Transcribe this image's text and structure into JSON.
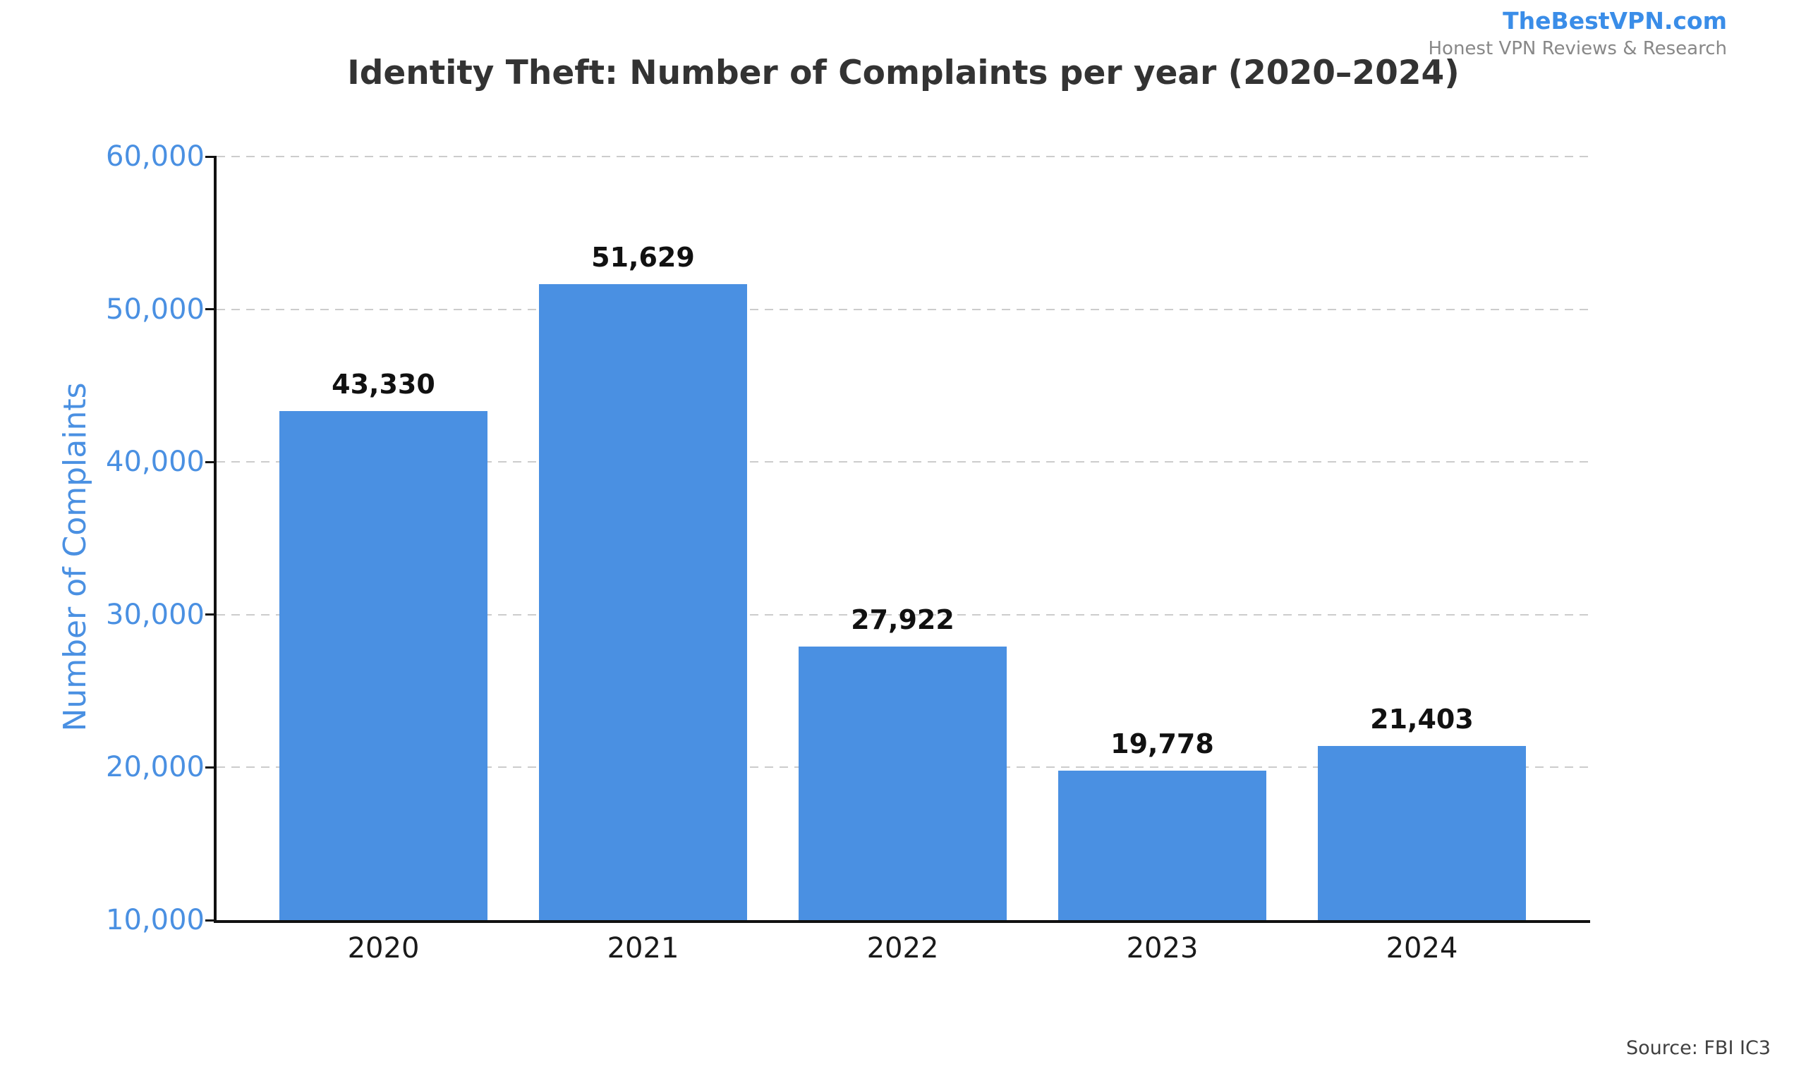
{
  "branding": {
    "name": "TheBestVPN.com",
    "tagline": "Honest VPN Reviews & Research"
  },
  "chart_data": {
    "type": "bar",
    "title": "Identity Theft: Number of Complaints per year (2020–2024)",
    "categories": [
      "2020",
      "2021",
      "2022",
      "2023",
      "2024"
    ],
    "values": [
      43330,
      51629,
      27922,
      19778,
      21403
    ],
    "value_labels": [
      "43,330",
      "51,629",
      "27,922",
      "19,778",
      "21,403"
    ],
    "xlabel": "",
    "ylabel": "Number of Complaints",
    "ylim": [
      10000,
      60000
    ],
    "y_ticks": [
      10000,
      20000,
      30000,
      40000,
      50000,
      60000
    ],
    "y_tick_labels": [
      "10,000",
      "20,000",
      "30,000",
      "40,000",
      "50,000",
      "60,000"
    ],
    "grid": "horizontal dashed",
    "legend": "none",
    "colors": {
      "bar": "#4a90e2",
      "axis_blue": "#4a90e2",
      "value_label": "#111111",
      "xtick_label": "#1a1a1a",
      "title": "#333333",
      "brand": "#3a8de8",
      "tagline": "#888888",
      "grid": "#cccccc",
      "spine": "#111111",
      "source": "#3f3f3f"
    }
  },
  "source": {
    "label": "Source: FBI IC3"
  }
}
